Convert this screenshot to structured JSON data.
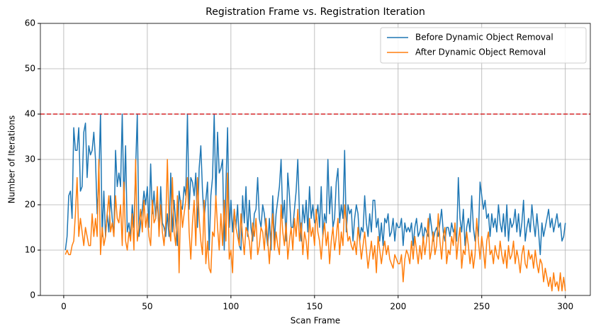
{
  "chart_data": {
    "type": "line",
    "title": "Registration Frame vs. Registration Iteration",
    "xlabel": "Scan Frame",
    "ylabel": "Number of Iterations",
    "xlim": [
      -13.95,
      314.95
    ],
    "ylim": [
      0,
      60
    ],
    "xticks": [
      0,
      50,
      100,
      150,
      200,
      250,
      300
    ],
    "yticks": [
      0,
      10,
      20,
      30,
      40,
      50,
      60
    ],
    "grid": true,
    "legend": "upper right",
    "hlines": [
      {
        "y": 40,
        "color": "#d62728"
      }
    ],
    "x": [
      1,
      2,
      3,
      4,
      5,
      6,
      7,
      8,
      9,
      10,
      11,
      12,
      13,
      14,
      15,
      16,
      17,
      18,
      19,
      20,
      21,
      22,
      23,
      24,
      25,
      26,
      27,
      28,
      29,
      30,
      31,
      32,
      33,
      34,
      35,
      36,
      37,
      38,
      39,
      40,
      41,
      42,
      43,
      44,
      45,
      46,
      47,
      48,
      49,
      50,
      51,
      52,
      53,
      54,
      55,
      56,
      57,
      58,
      59,
      60,
      61,
      62,
      63,
      64,
      65,
      66,
      67,
      68,
      69,
      70,
      71,
      72,
      73,
      74,
      75,
      76,
      77,
      78,
      79,
      80,
      81,
      82,
      83,
      84,
      85,
      86,
      87,
      88,
      89,
      90,
      91,
      92,
      93,
      94,
      95,
      96,
      97,
      98,
      99,
      100,
      101,
      102,
      103,
      104,
      105,
      106,
      107,
      108,
      109,
      110,
      111,
      112,
      113,
      114,
      115,
      116,
      117,
      118,
      119,
      120,
      121,
      122,
      123,
      124,
      125,
      126,
      127,
      128,
      129,
      130,
      131,
      132,
      133,
      134,
      135,
      136,
      137,
      138,
      139,
      140,
      141,
      142,
      143,
      144,
      145,
      146,
      147,
      148,
      149,
      150,
      151,
      152,
      153,
      154,
      155,
      156,
      157,
      158,
      159,
      160,
      161,
      162,
      163,
      164,
      165,
      166,
      167,
      168,
      169,
      170,
      171,
      172,
      173,
      174,
      175,
      176,
      177,
      178,
      179,
      180,
      181,
      182,
      183,
      184,
      185,
      186,
      187,
      188,
      189,
      190,
      191,
      192,
      193,
      194,
      195,
      196,
      197,
      198,
      199,
      200,
      201,
      202,
      203,
      204,
      205,
      206,
      207,
      208,
      209,
      210,
      211,
      212,
      213,
      214,
      215,
      216,
      217,
      218,
      219,
      220,
      221,
      222,
      223,
      224,
      225,
      226,
      227,
      228,
      229,
      230,
      231,
      232,
      233,
      234,
      235,
      236,
      237,
      238,
      239,
      240,
      241,
      242,
      243,
      244,
      245,
      246,
      247,
      248,
      249,
      250,
      251,
      252,
      253,
      254,
      255,
      256,
      257,
      258,
      259,
      260,
      261,
      262,
      263,
      264,
      265,
      266,
      267,
      268,
      269,
      270,
      271,
      272,
      273,
      274,
      275,
      276,
      277,
      278,
      279,
      280,
      281,
      282,
      283,
      284,
      285,
      286,
      287,
      288,
      289,
      290,
      291,
      292,
      293,
      294,
      295,
      296,
      297,
      298,
      299,
      300
    ],
    "series": [
      {
        "name": "Before Dynamic Object Removal",
        "color": "#1f77b4",
        "values": [
          10,
          13,
          22,
          23,
          17,
          37,
          32,
          32,
          37,
          23,
          24,
          36,
          38,
          26,
          33,
          31,
          32,
          36,
          30,
          18,
          26,
          40,
          13,
          23,
          13,
          18,
          14,
          22,
          17,
          13,
          32,
          24,
          27,
          24,
          40,
          20,
          33,
          14,
          16,
          13,
          20,
          15,
          28,
          40,
          13,
          16,
          19,
          23,
          20,
          24,
          15,
          29,
          18,
          23,
          17,
          21,
          14,
          24,
          16,
          15,
          13,
          18,
          13,
          27,
          14,
          21,
          16,
          11,
          23,
          20,
          19,
          24,
          22,
          40,
          19,
          26,
          25,
          22,
          27,
          15,
          28,
          33,
          23,
          17,
          21,
          25,
          10,
          22,
          26,
          40,
          21,
          36,
          27,
          28,
          30,
          10,
          24,
          37,
          15,
          21,
          14,
          19,
          15,
          20,
          11,
          10,
          22,
          16,
          24,
          13,
          21,
          15,
          12,
          18,
          19,
          26,
          17,
          15,
          20,
          18,
          14,
          11,
          17,
          10,
          22,
          12,
          18,
          21,
          24,
          30,
          17,
          21,
          12,
          27,
          22,
          15,
          15,
          19,
          23,
          30,
          18,
          12,
          20,
          16,
          21,
          14,
          24,
          17,
          20,
          16,
          17,
          20,
          15,
          24,
          13,
          18,
          16,
          30,
          18,
          24,
          15,
          17,
          25,
          28,
          16,
          20,
          17,
          32,
          14,
          20,
          18,
          19,
          12,
          17,
          20,
          18,
          12,
          15,
          14,
          22,
          16,
          13,
          18,
          14,
          21,
          21,
          15,
          17,
          12,
          16,
          11,
          17,
          16,
          18,
          13,
          14,
          17,
          12,
          16,
          15,
          15,
          17,
          11,
          16,
          14,
          15,
          14,
          16,
          11,
          15,
          17,
          13,
          14,
          16,
          12,
          15,
          14,
          13,
          18,
          15,
          12,
          14,
          15,
          13,
          16,
          19,
          14,
          12,
          15,
          15,
          13,
          16,
          14,
          15,
          12,
          26,
          17,
          14,
          19,
          11,
          15,
          17,
          14,
          22,
          15,
          12,
          16,
          13,
          25,
          22,
          19,
          21,
          17,
          18,
          13,
          18,
          15,
          17,
          14,
          20,
          16,
          14,
          18,
          13,
          20,
          12,
          17,
          15,
          16,
          19,
          14,
          18,
          13,
          16,
          21,
          12,
          15,
          17,
          14,
          20,
          16,
          13,
          18,
          14,
          9,
          16,
          13,
          15,
          17,
          19,
          15,
          17,
          14,
          16,
          18,
          15,
          16,
          12,
          13,
          16
        ]
      },
      {
        "name": "After Dynamic Object Removal",
        "color": "#ff7f0e",
        "values": [
          9,
          10,
          9,
          9,
          11,
          12,
          18,
          26,
          13,
          17,
          14,
          11,
          15,
          13,
          11,
          11,
          18,
          13,
          17,
          13,
          30,
          9,
          15,
          11,
          13,
          18,
          22,
          14,
          16,
          13,
          22,
          17,
          16,
          20,
          11,
          25,
          12,
          10,
          14,
          12,
          18,
          10,
          30,
          12,
          15,
          19,
          14,
          21,
          15,
          18,
          13,
          11,
          21,
          16,
          17,
          24,
          13,
          20,
          14,
          11,
          16,
          30,
          15,
          12,
          26,
          14,
          11,
          22,
          5,
          21,
          15,
          18,
          21,
          26,
          14,
          8,
          16,
          21,
          11,
          26,
          17,
          12,
          9,
          21,
          7,
          12,
          6,
          5,
          14,
          13,
          22,
          15,
          10,
          18,
          11,
          21,
          12,
          27,
          8,
          10,
          5,
          19,
          15,
          13,
          11,
          18,
          13,
          9,
          15,
          14,
          12,
          8,
          16,
          13,
          17,
          9,
          11,
          15,
          14,
          10,
          17,
          12,
          7,
          13,
          18,
          10,
          14,
          11,
          9,
          20,
          14,
          11,
          16,
          8,
          12,
          15,
          10,
          17,
          13,
          19,
          12,
          16,
          9,
          14,
          12,
          8,
          17,
          13,
          15,
          11,
          19,
          14,
          12,
          8,
          13,
          16,
          11,
          14,
          7,
          12,
          15,
          10,
          13,
          17,
          9,
          14,
          11,
          20,
          16,
          12,
          13,
          11,
          10,
          12,
          9,
          15,
          12,
          8,
          11,
          14,
          10,
          6,
          9,
          12,
          8,
          11,
          5,
          13,
          10,
          7,
          10,
          12,
          9,
          11,
          8,
          7,
          6,
          9,
          8,
          7,
          7,
          9,
          3,
          8,
          10,
          9,
          7,
          12,
          8,
          13,
          10,
          7,
          11,
          8,
          13,
          9,
          12,
          17,
          8,
          10,
          14,
          9,
          11,
          18,
          12,
          8,
          13,
          15,
          7,
          10,
          9,
          13,
          11,
          16,
          8,
          12,
          15,
          6,
          10,
          9,
          14,
          11,
          7,
          10,
          6,
          9,
          17,
          12,
          8,
          13,
          10,
          6,
          12,
          14,
          9,
          10,
          7,
          11,
          9,
          8,
          12,
          9,
          7,
          10,
          6,
          11,
          8,
          9,
          12,
          7,
          10,
          8,
          5,
          9,
          11,
          7,
          6,
          10,
          8,
          9,
          6,
          10,
          7,
          5,
          8,
          7,
          3,
          6,
          4,
          2,
          4,
          1,
          5,
          2,
          3,
          1,
          5,
          1,
          4,
          1
        ]
      }
    ]
  }
}
